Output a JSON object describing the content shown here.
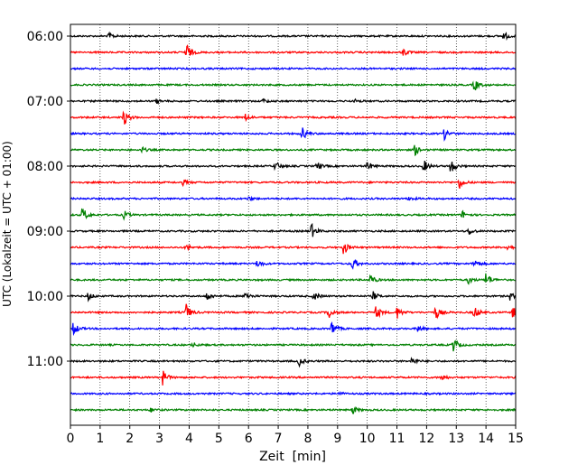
{
  "chart_data": {
    "type": "line",
    "title": "",
    "xlabel": "Zeit  [min]",
    "ylabel": "UTC (Lokalzeit = UTC + 01:00)",
    "xlim": [
      0,
      15
    ],
    "x_ticks": [
      "0",
      "1",
      "2",
      "3",
      "4",
      "5",
      "6",
      "7",
      "8",
      "9",
      "10",
      "11",
      "12",
      "13",
      "14",
      "15"
    ],
    "y_ticks": [
      "06:00",
      "07:00",
      "08:00",
      "09:00",
      "10:00",
      "11:00"
    ],
    "grid": "vertical dotted lines at each minute",
    "trace_colors": [
      "#000000",
      "#ff0000",
      "#0000ff",
      "#008000"
    ],
    "traces": [
      {
        "start": "06:00",
        "color": "#000000",
        "events": [
          [
            1.3,
            0.25
          ],
          [
            14.6,
            0.3
          ]
        ]
      },
      {
        "start": "06:15",
        "color": "#ff0000",
        "events": [
          [
            3.9,
            0.7
          ],
          [
            11.2,
            0.3
          ]
        ]
      },
      {
        "start": "06:30",
        "color": "#0000ff",
        "events": []
      },
      {
        "start": "06:45",
        "color": "#008000",
        "events": [
          [
            13.6,
            0.5
          ]
        ]
      },
      {
        "start": "07:00",
        "color": "#000000",
        "events": [
          [
            2.9,
            0.15
          ],
          [
            6.5,
            0.15
          ],
          [
            9.6,
            0.1
          ]
        ]
      },
      {
        "start": "07:15",
        "color": "#ff0000",
        "events": [
          [
            1.8,
            0.6
          ],
          [
            5.9,
            0.25
          ]
        ]
      },
      {
        "start": "07:30",
        "color": "#0000ff",
        "events": [
          [
            7.8,
            0.5
          ],
          [
            12.6,
            0.4
          ]
        ]
      },
      {
        "start": "07:45",
        "color": "#008000",
        "events": [
          [
            11.6,
            0.4
          ],
          [
            2.4,
            0.2
          ]
        ]
      },
      {
        "start": "08:00",
        "color": "#000000",
        "events": [
          [
            6.9,
            0.35
          ],
          [
            8.3,
            0.3
          ],
          [
            10.0,
            0.35
          ],
          [
            11.9,
            0.45
          ],
          [
            12.8,
            0.6
          ]
        ]
      },
      {
        "start": "08:15",
        "color": "#ff0000",
        "events": [
          [
            13.1,
            0.45
          ],
          [
            3.8,
            0.2
          ]
        ]
      },
      {
        "start": "08:30",
        "color": "#0000ff",
        "events": [
          [
            6.0,
            0.15
          ],
          [
            11.4,
            0.15
          ]
        ]
      },
      {
        "start": "08:45",
        "color": "#008000",
        "events": [
          [
            0.4,
            0.6
          ],
          [
            1.8,
            0.3
          ],
          [
            13.2,
            0.3
          ]
        ]
      },
      {
        "start": "09:00",
        "color": "#000000",
        "events": [
          [
            8.1,
            0.6
          ],
          [
            13.4,
            0.3
          ]
        ]
      },
      {
        "start": "09:15",
        "color": "#ff0000",
        "events": [
          [
            9.2,
            0.55
          ],
          [
            14.7,
            0.25
          ],
          [
            3.9,
            0.2
          ]
        ]
      },
      {
        "start": "09:30",
        "color": "#0000ff",
        "events": [
          [
            9.5,
            0.5
          ],
          [
            6.3,
            0.3
          ],
          [
            13.6,
            0.35
          ]
        ]
      },
      {
        "start": "09:45",
        "color": "#008000",
        "events": [
          [
            14.0,
            0.6
          ],
          [
            10.1,
            0.4
          ],
          [
            13.4,
            0.3
          ]
        ]
      },
      {
        "start": "10:00",
        "color": "#000000",
        "events": [
          [
            0.6,
            0.3
          ],
          [
            4.6,
            0.3
          ],
          [
            5.9,
            0.35
          ],
          [
            8.2,
            0.35
          ],
          [
            10.2,
            0.3
          ],
          [
            14.8,
            0.3
          ]
        ]
      },
      {
        "start": "10:15",
        "color": "#ff0000",
        "events": [
          [
            3.9,
            0.6
          ],
          [
            8.7,
            0.45
          ],
          [
            10.3,
            0.5
          ],
          [
            11.0,
            0.45
          ],
          [
            12.3,
            0.5
          ],
          [
            13.6,
            0.5
          ],
          [
            14.9,
            0.4
          ]
        ]
      },
      {
        "start": "10:30",
        "color": "#0000ff",
        "events": [
          [
            0.1,
            0.5
          ],
          [
            8.8,
            0.55
          ],
          [
            11.7,
            0.3
          ]
        ]
      },
      {
        "start": "10:45",
        "color": "#008000",
        "events": [
          [
            12.9,
            0.55
          ],
          [
            4.1,
            0.2
          ]
        ]
      },
      {
        "start": "11:00",
        "color": "#000000",
        "events": [
          [
            7.7,
            0.35
          ],
          [
            11.5,
            0.3
          ]
        ]
      },
      {
        "start": "11:15",
        "color": "#ff0000",
        "events": [
          [
            3.1,
            0.55
          ],
          [
            12.5,
            0.25
          ]
        ]
      },
      {
        "start": "11:30",
        "color": "#0000ff",
        "events": [
          [
            9.0,
            0.15
          ]
        ]
      },
      {
        "start": "11:45",
        "color": "#008000",
        "events": [
          [
            9.5,
            0.3
          ],
          [
            2.7,
            0.15
          ]
        ]
      }
    ]
  }
}
